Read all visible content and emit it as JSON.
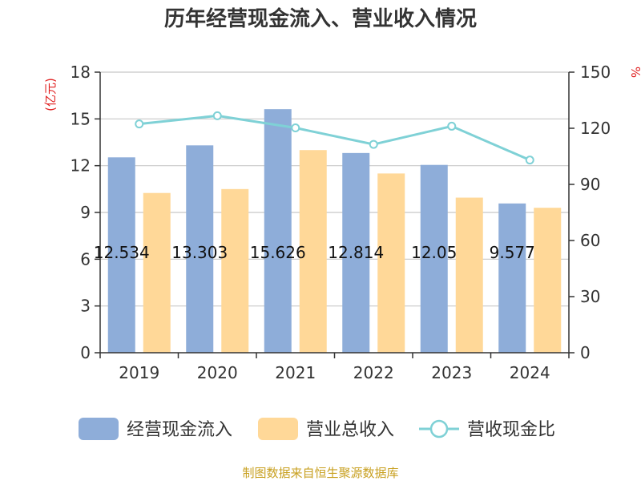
{
  "chart_data": {
    "type": "bar",
    "title": "历年经营现金流入、营业收入情况",
    "y_unit_left": "(亿元)",
    "y_unit_right": "%",
    "categories": [
      "2019",
      "2020",
      "2021",
      "2022",
      "2023",
      "2024"
    ],
    "ylim_left": [
      0,
      18
    ],
    "ylim_right": [
      0,
      150
    ],
    "yticks_left": [
      "0",
      "3",
      "6",
      "9",
      "12",
      "15",
      "18"
    ],
    "yticks_right": [
      "0",
      "30",
      "60",
      "90",
      "120",
      "150"
    ],
    "grid": true,
    "legend_position": "bottom",
    "series": [
      {
        "name": "经营现金流入",
        "type": "bar",
        "axis": "left",
        "color": "#8eadd9",
        "values": [
          12.534,
          13.303,
          15.626,
          12.814,
          12.05,
          9.577
        ],
        "labels": [
          "12.534",
          "13.303",
          "15.626",
          "12.814",
          "12.05",
          "9.577"
        ]
      },
      {
        "name": "营业总收入",
        "type": "bar",
        "axis": "left",
        "color": "#ffd898",
        "values": [
          10.25,
          10.5,
          13.0,
          11.5,
          9.95,
          9.3
        ]
      },
      {
        "name": "营收现金比",
        "type": "line",
        "axis": "right",
        "color": "#7fd1d6",
        "values": [
          122.3,
          126.7,
          120.2,
          111.4,
          121.1,
          103.0
        ]
      }
    ]
  },
  "source_text": "制图数据来自恒生聚源数据库"
}
